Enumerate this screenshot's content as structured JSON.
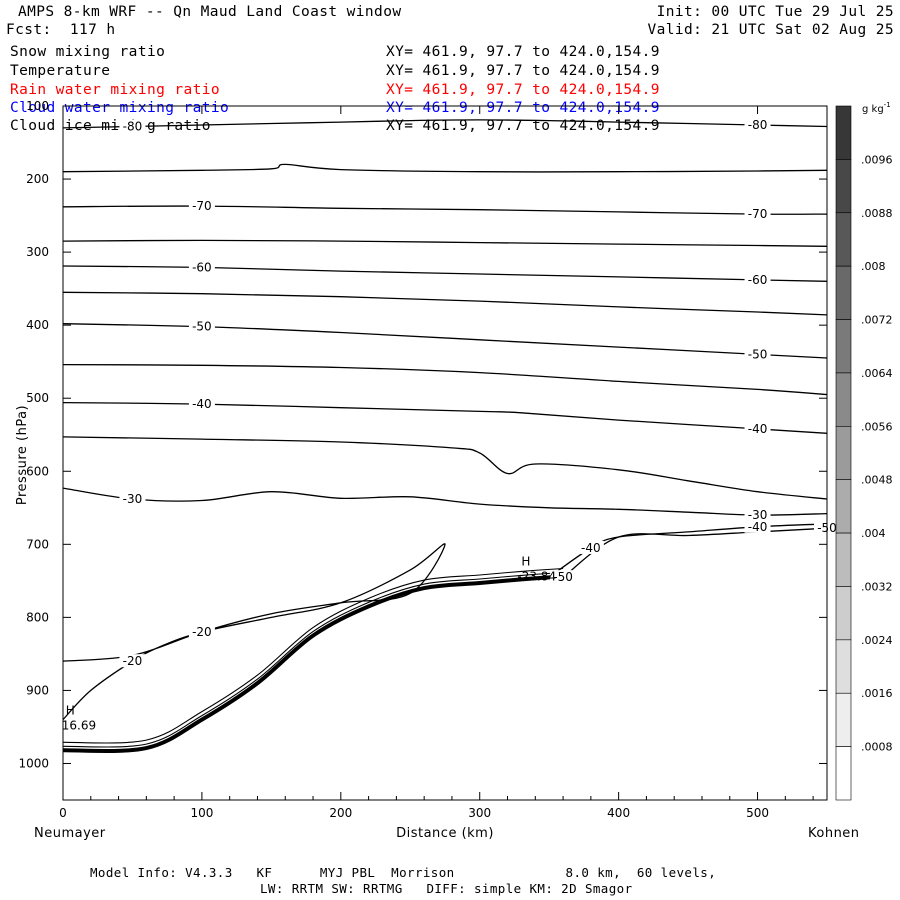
{
  "header": {
    "title": "AMPS 8-km WRF -- Qn Maud Land Coast window",
    "init": "Init: 00 UTC Tue 29 Jul 25",
    "fcst": "Fcst:  117 h",
    "valid": "Valid: 21 UTC Sat 02 Aug 25"
  },
  "fields": [
    {
      "name": "Snow mixing ratio",
      "xy": "XY= 461.9, 97.7 to 424.0,154.9",
      "color": "#000000"
    },
    {
      "name": "Temperature",
      "xy": "XY= 461.9, 97.7 to 424.0,154.9",
      "color": "#000000"
    },
    {
      "name": "Rain water mixing ratio",
      "xy": "XY= 461.9, 97.7 to 424.0,154.9",
      "color": "#ff0000"
    },
    {
      "name": "Cloud water mixing ratio",
      "xy": "XY= 461.9, 97.7 to 424.0,154.9",
      "color": "#0000ff"
    },
    {
      "name": "Cloud ice mixing ratio",
      "xy": "XY= 461.9, 97.7 to 424.0,154.9",
      "color": "#000000"
    }
  ],
  "footer": {
    "model_info": "Model Info: V4.3.3   KF      MYJ PBL  Morrison              8.0 km,  60 levels,",
    "physics": "LW: RRTM SW: RRTMG   DIFF: simple KM: 2D Smagor"
  },
  "chart_data": {
    "type": "line",
    "xlabel": "Distance (km)",
    "ylabel": "Pressure (hPa)",
    "xlim": [
      0,
      550
    ],
    "ylim": [
      1050,
      100
    ],
    "x_ticks": [
      0,
      100,
      200,
      300,
      400,
      500
    ],
    "y_ticks": [
      100,
      200,
      300,
      400,
      500,
      600,
      700,
      800,
      900,
      1000
    ],
    "x_left_label": "Neumayer",
    "x_right_label": "Kohnen",
    "grid": false,
    "colorbar": {
      "unit": "g kg",
      "unit_sup": "-1",
      "labels": [
        ".0096",
        ".0088",
        ".008",
        ".0072",
        ".0064",
        ".0056",
        ".0048",
        ".004",
        ".0032",
        ".0024",
        ".0016",
        ".0008"
      ]
    },
    "series": [
      {
        "label": "-80",
        "x": [
          0,
          50,
          100,
          150,
          200,
          250,
          300,
          350,
          400,
          450,
          500,
          550
        ],
        "y": [
          130,
          128,
          126,
          124,
          122,
          120,
          119,
          120,
          122,
          124,
          126,
          128
        ]
      },
      {
        "label": "",
        "x": [
          0,
          100,
          150,
          160,
          200,
          300,
          400,
          500,
          550
        ],
        "y": [
          190,
          188,
          186,
          180,
          187,
          190,
          190,
          189,
          188
        ]
      },
      {
        "label": "-70",
        "x": [
          0,
          100,
          200,
          300,
          400,
          500,
          550
        ],
        "y": [
          238,
          237,
          240,
          242,
          245,
          248,
          248
        ]
      },
      {
        "label": "",
        "x": [
          0,
          100,
          200,
          300,
          400,
          500,
          550
        ],
        "y": [
          285,
          284,
          285,
          287,
          289,
          291,
          292
        ]
      },
      {
        "label": "-60",
        "x": [
          0,
          100,
          200,
          300,
          400,
          500,
          550
        ],
        "y": [
          319,
          321,
          326,
          330,
          334,
          338,
          340
        ]
      },
      {
        "label": "",
        "x": [
          0,
          100,
          200,
          300,
          400,
          500,
          550
        ],
        "y": [
          355,
          357,
          361,
          367,
          375,
          382,
          386
        ]
      },
      {
        "label": "-50",
        "x": [
          0,
          100,
          200,
          300,
          400,
          500,
          550
        ],
        "y": [
          398,
          402,
          410,
          420,
          430,
          440,
          445
        ]
      },
      {
        "label": "",
        "x": [
          0,
          100,
          200,
          300,
          400,
          500,
          550
        ],
        "y": [
          454,
          455,
          458,
          465,
          477,
          488,
          495
        ]
      },
      {
        "label": "-40",
        "x": [
          0,
          100,
          200,
          300,
          330,
          400,
          500,
          550
        ],
        "y": [
          506,
          508,
          513,
          518,
          520,
          530,
          542,
          548
        ]
      },
      {
        "label": "",
        "x": [
          0,
          100,
          200,
          280,
          300,
          320,
          340,
          400,
          450,
          500,
          550
        ],
        "y": [
          553,
          556,
          560,
          568,
          575,
          603,
          590,
          598,
          613,
          628,
          638
        ]
      },
      {
        "label": "-30",
        "x": [
          0,
          50,
          100,
          150,
          200,
          250,
          300,
          350,
          400,
          450,
          500,
          550
        ],
        "y": [
          623,
          638,
          640,
          628,
          637,
          635,
          645,
          650,
          652,
          656,
          660,
          658
        ]
      },
      {
        "label": "-20",
        "x": [
          0,
          50,
          100,
          150,
          200,
          250,
          275,
          250,
          200,
          150,
          100,
          70,
          50,
          20,
          0
        ],
        "y": [
          860,
          852,
          820,
          795,
          780,
          767,
          700,
          735,
          780,
          800,
          820,
          840,
          860,
          900,
          940
        ]
      },
      {
        "label": "-40",
        "x": [
          350,
          380,
          400,
          450,
          500,
          550
        ],
        "y": [
          745,
          705,
          690,
          683,
          676,
          672
        ]
      },
      {
        "label": "-50",
        "x": [
          360,
          400,
          450,
          500,
          550
        ],
        "y": [
          745,
          690,
          688,
          683,
          678
        ]
      },
      {
        "label": "",
        "x": [
          0,
          60,
          100,
          140,
          180,
          220,
          260,
          300,
          330,
          360
        ],
        "y": [
          982,
          979,
          940,
          890,
          825,
          785,
          760,
          753,
          748,
          744
        ]
      }
    ],
    "highs": [
      {
        "marker": "H",
        "value": "16.69",
        "x": 2,
        "y": 952
      },
      {
        "marker": "H",
        "value": "-23.84",
        "x": 330,
        "y": 748
      }
    ]
  }
}
